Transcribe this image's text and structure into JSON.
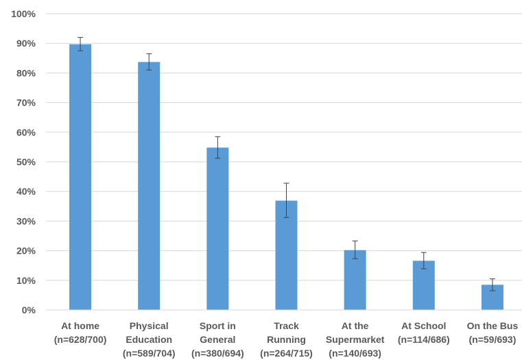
{
  "chart_data": {
    "type": "bar",
    "categories": [
      [
        "At home",
        "(n=628/700)"
      ],
      [
        "Physical",
        "Education",
        "(n=589/704)"
      ],
      [
        "Sport in",
        "General",
        "(n=380/694)"
      ],
      [
        "Track",
        "Running",
        "(n=264/715)"
      ],
      [
        "At the",
        "Supermarket",
        "(n=140/693)"
      ],
      [
        "At School",
        "(n=114/686)"
      ],
      [
        "On the Bus",
        "(n=59/693)"
      ]
    ],
    "values": [
      89.7,
      83.7,
      54.8,
      36.9,
      20.2,
      16.6,
      8.5
    ],
    "error_low": [
      87.5,
      81.0,
      51.2,
      31.2,
      17.3,
      13.9,
      6.5
    ],
    "error_high": [
      92.0,
      86.5,
      58.5,
      42.8,
      23.3,
      19.4,
      10.5
    ],
    "ylim": [
      0,
      100
    ],
    "yticks": [
      0,
      10,
      20,
      30,
      40,
      50,
      60,
      70,
      80,
      90,
      100
    ],
    "ytick_format": "%",
    "grid": true,
    "bar_color": "#5b9bd5",
    "grid_color": "#d9d9d9",
    "error_bar_color": "#404040",
    "title": "",
    "xlabel": "",
    "ylabel": ""
  }
}
